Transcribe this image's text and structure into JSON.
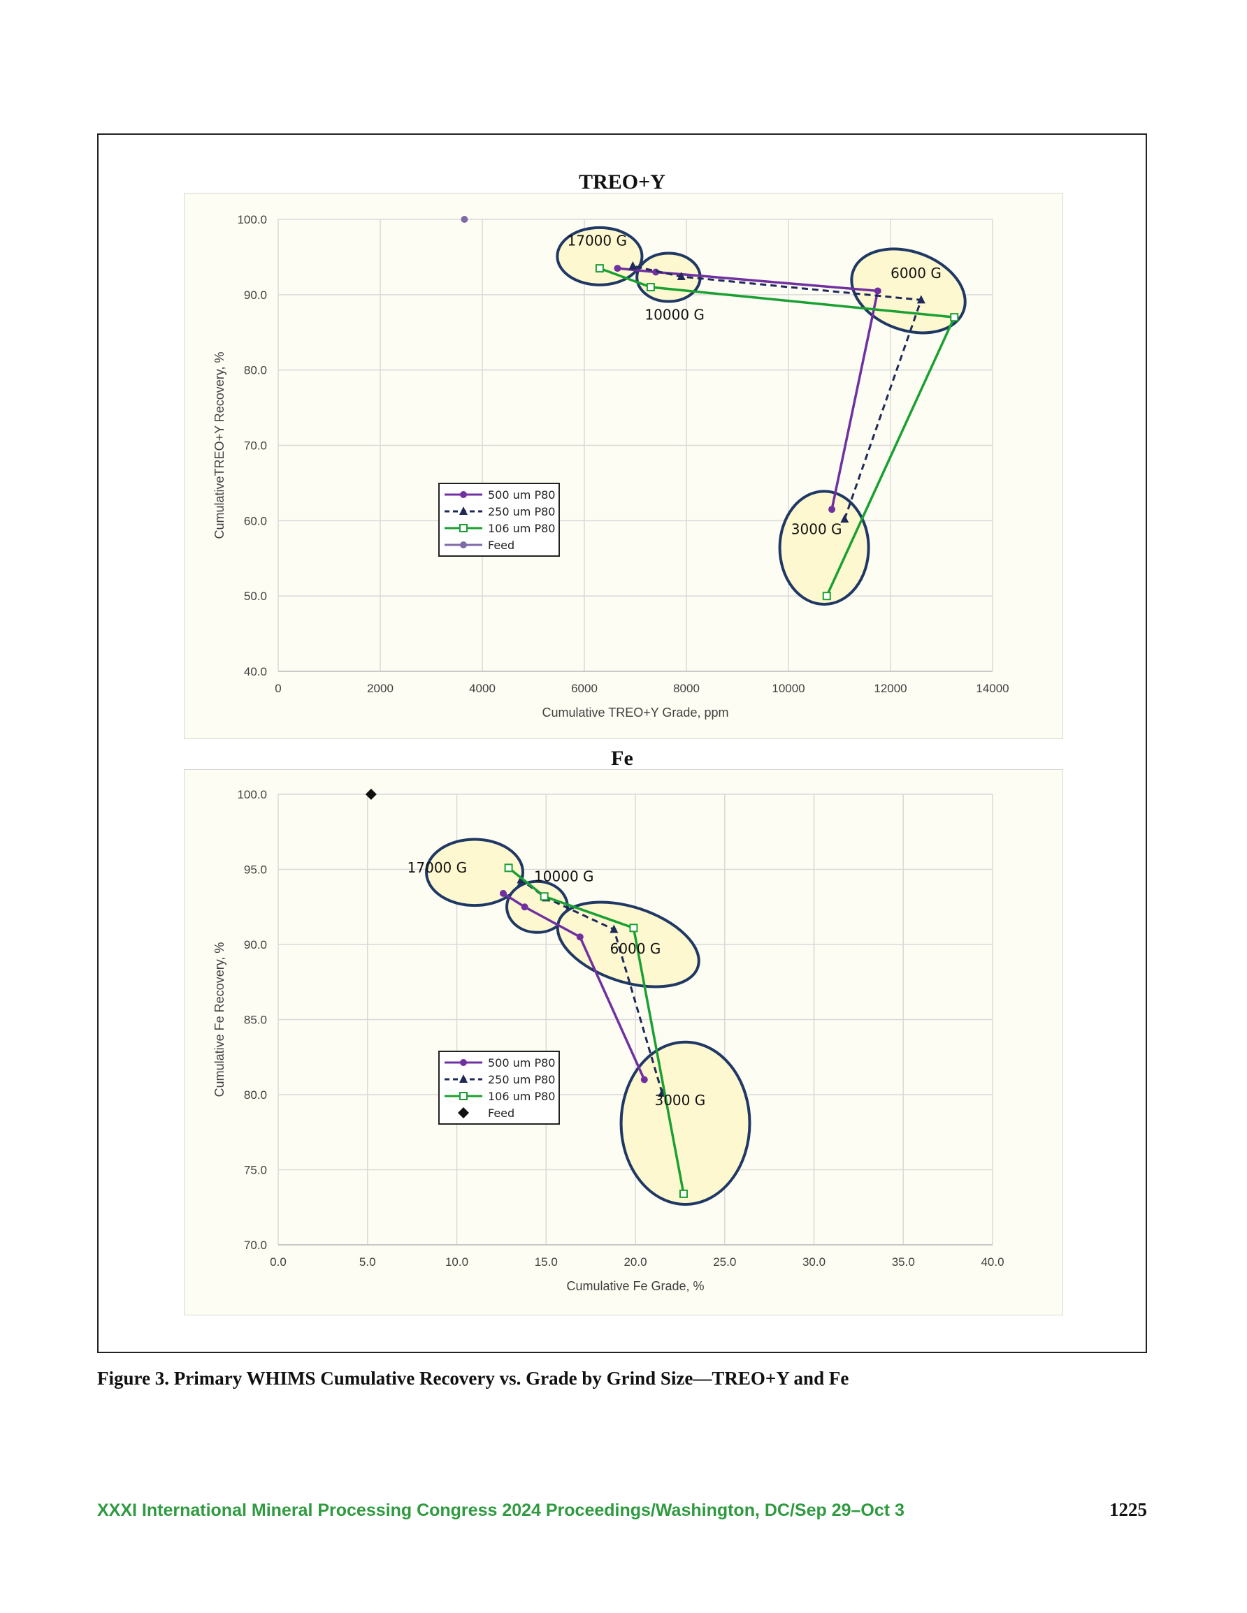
{
  "figure": {
    "caption": "Figure 3. Primary WHIMS Cumulative Recovery vs. Grade by Grind Size—TREO+Y and Fe"
  },
  "footer": {
    "text": "XXXI International Mineral Processing Congress 2024 Proceedings/Washington, DC/Sep 29–Oct 3",
    "page_number": "1225"
  },
  "chart_data": [
    {
      "type": "line",
      "title": "TREO+Y",
      "xlabel": "Cumulative TREO+Y  Grade, ppm",
      "ylabel": "CumulativeTREO+Y  Recovery, %",
      "xlim": [
        0,
        14000
      ],
      "ylim": [
        40,
        100
      ],
      "xticks": [
        0,
        2000,
        4000,
        6000,
        8000,
        10000,
        12000,
        14000
      ],
      "yticks": [
        40,
        50,
        60,
        70,
        80,
        90,
        100
      ],
      "xtick_labels": [
        "0",
        "2000",
        "4000",
        "6000",
        "8000",
        "10000",
        "12000",
        "14000"
      ],
      "ytick_labels": [
        "40.0",
        "50.0",
        "60.0",
        "70.0",
        "80.0",
        "90.0",
        "100.0"
      ],
      "grid": true,
      "legend_position": "center-left",
      "series": [
        {
          "name": "500 um P80",
          "color": "#7030a0",
          "style": "solid",
          "marker": "circle",
          "x": [
            10850,
            11750,
            7400,
            6650
          ],
          "y": [
            61.5,
            90.5,
            93.0,
            93.5
          ]
        },
        {
          "name": "250 um P80",
          "color": "#1f2a5a",
          "style": "dashed",
          "marker": "triangle",
          "x": [
            11100,
            12600,
            7900,
            6950
          ],
          "y": [
            60.2,
            89.3,
            92.4,
            93.8
          ]
        },
        {
          "name": "106 um P80",
          "color": "#1aa032",
          "style": "solid",
          "marker": "square-open",
          "x": [
            10750,
            13250,
            7300,
            6300
          ],
          "y": [
            50.0,
            87.0,
            91.0,
            93.5
          ]
        },
        {
          "name": "Feed",
          "color": "#7f6aa8",
          "style": "solid",
          "marker": "circle",
          "x": [
            3650
          ],
          "y": [
            100.0
          ]
        }
      ],
      "annotations": [
        {
          "label": "17000 G",
          "cx": 6300,
          "cy": 95.1,
          "rx": 830,
          "ry": 3.8,
          "angle": 0,
          "text_x": 6250,
          "text_y": 96.5
        },
        {
          "label": "10000 G",
          "cx": 7650,
          "cy": 92.3,
          "rx": 620,
          "ry": 3.2,
          "angle": 0,
          "text_x": 7770,
          "text_y": 86.7
        },
        {
          "label": "6000 G",
          "cx": 12350,
          "cy": 90.5,
          "rx": 1150,
          "ry": 5.2,
          "angle": 20,
          "text_x": 12500,
          "text_y": 92.2
        },
        {
          "label": "3000 G",
          "cx": 10700,
          "cy": 56.4,
          "rx": 870,
          "ry": 7.5,
          "angle": 0,
          "text_x": 10550,
          "text_y": 58.2
        }
      ]
    },
    {
      "type": "line",
      "title": "Fe",
      "xlabel": "Cumulative Fe Grade, %",
      "ylabel": "Cumulative Fe Recovery, %",
      "xlim": [
        0,
        40
      ],
      "ylim": [
        70,
        100
      ],
      "xticks": [
        0,
        5,
        10,
        15,
        20,
        25,
        30,
        35,
        40
      ],
      "yticks": [
        70,
        75,
        80,
        85,
        90,
        95,
        100
      ],
      "xtick_labels": [
        "0.0",
        "5.0",
        "10.0",
        "15.0",
        "20.0",
        "25.0",
        "30.0",
        "35.0",
        "40.0"
      ],
      "ytick_labels": [
        "70.0",
        "75.0",
        "80.0",
        "85.0",
        "90.0",
        "95.0",
        "100.0"
      ],
      "grid": true,
      "legend_position": "center-left",
      "series": [
        {
          "name": "500 um P80",
          "color": "#7030a0",
          "style": "solid",
          "marker": "circle",
          "x": [
            20.5,
            16.9,
            13.8,
            12.6
          ],
          "y": [
            81.0,
            90.5,
            92.5,
            93.4
          ]
        },
        {
          "name": "250 um P80",
          "color": "#1f2a5a",
          "style": "dashed",
          "marker": "triangle",
          "x": [
            21.5,
            18.8,
            15.0,
            13.6
          ],
          "y": [
            80.1,
            91.0,
            93.1,
            94.3
          ]
        },
        {
          "name": "106 um P80",
          "color": "#1aa032",
          "style": "solid",
          "marker": "square-open",
          "x": [
            22.7,
            19.9,
            14.9,
            12.9
          ],
          "y": [
            73.4,
            91.1,
            93.2,
            95.1
          ]
        },
        {
          "name": "Feed",
          "color": "#111111",
          "style": "none",
          "marker": "diamond",
          "x": [
            5.2
          ],
          "y": [
            100.0
          ]
        }
      ],
      "annotations": [
        {
          "label": "17000 G",
          "cx": 11.0,
          "cy": 94.8,
          "rx": 2.7,
          "ry": 2.2,
          "angle": 0,
          "text_x": 8.9,
          "text_y": 94.8
        },
        {
          "label": "10000 G",
          "cx": 14.5,
          "cy": 92.5,
          "rx": 1.7,
          "ry": 1.7,
          "angle": 0,
          "text_x": 16.0,
          "text_y": 94.2
        },
        {
          "label": "6000 G",
          "cx": 19.6,
          "cy": 90.0,
          "rx": 4.1,
          "ry": 2.5,
          "angle": 18,
          "text_x": 20.0,
          "text_y": 89.4
        },
        {
          "label": "3000 G",
          "cx": 22.8,
          "cy": 78.1,
          "rx": 3.6,
          "ry": 5.4,
          "angle": 0,
          "text_x": 22.5,
          "text_y": 79.3
        }
      ]
    }
  ]
}
